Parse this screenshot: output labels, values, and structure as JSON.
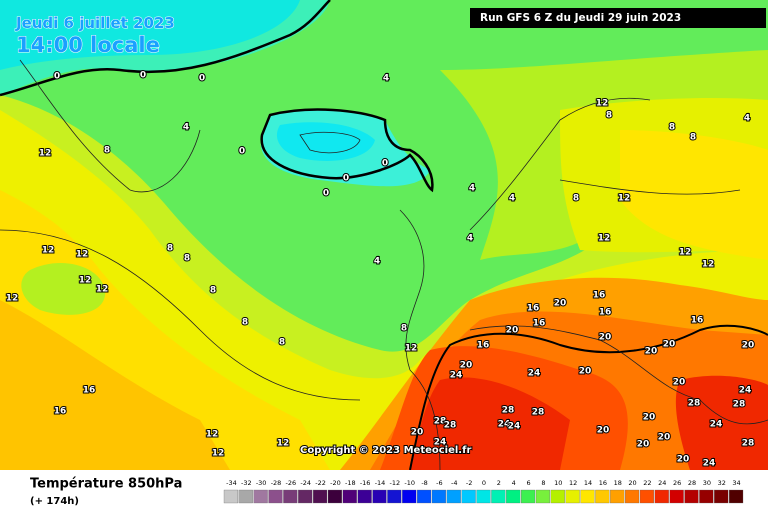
{
  "header": {
    "date": "Jeudi 6 juillet 2023",
    "time": "14:00 locale",
    "run": "Run GFS 6 Z du Jeudi 29 juin 2023"
  },
  "copyright": "Copyright © 2023 Meteociel.fr",
  "footer": {
    "title": "Température 850hPa",
    "lead": "(+ 174h)"
  },
  "scale": {
    "values": [
      -34,
      -32,
      -30,
      -28,
      -26,
      -24,
      -22,
      -20,
      -18,
      -16,
      -14,
      -12,
      -10,
      -8,
      -6,
      -4,
      -2,
      0,
      2,
      4,
      6,
      8,
      10,
      12,
      14,
      16,
      18,
      20,
      22,
      24,
      26,
      28,
      30,
      32,
      34
    ],
    "colors": [
      "#c8c8c8",
      "#a8a8a8",
      "#a078a0",
      "#8c508c",
      "#783c78",
      "#642864",
      "#500f50",
      "#3c003c",
      "#500078",
      "#3c0096",
      "#2800b4",
      "#1414d2",
      "#0000f0",
      "#0050ff",
      "#0078ff",
      "#00a0ff",
      "#00c8ff",
      "#00e6e6",
      "#00f0b4",
      "#00f082",
      "#3cf050",
      "#78f03c",
      "#b4f000",
      "#e6f000",
      "#ffe600",
      "#ffc800",
      "#ffa000",
      "#ff7800",
      "#ff5000",
      "#f02800",
      "#d20000",
      "#b40000",
      "#960000",
      "#780000",
      "#500000"
    ]
  },
  "contour_labels": [
    0,
    0,
    0,
    4,
    4,
    8,
    12,
    0,
    0,
    0,
    0,
    4,
    4,
    4,
    4,
    8,
    8,
    8,
    8,
    8,
    8,
    12,
    12,
    12,
    12,
    12,
    16,
    16,
    12,
    12,
    12,
    12,
    8,
    8,
    8,
    4,
    8,
    12,
    12,
    12,
    12,
    16,
    20,
    16,
    16,
    16,
    20,
    16,
    16,
    12,
    20,
    24,
    24,
    20,
    20,
    20,
    20,
    20,
    20,
    24,
    28,
    28,
    20,
    24,
    28,
    28,
    28,
    24,
    24,
    28,
    28,
    20,
    24,
    20,
    20,
    20,
    24,
    20
  ]
}
